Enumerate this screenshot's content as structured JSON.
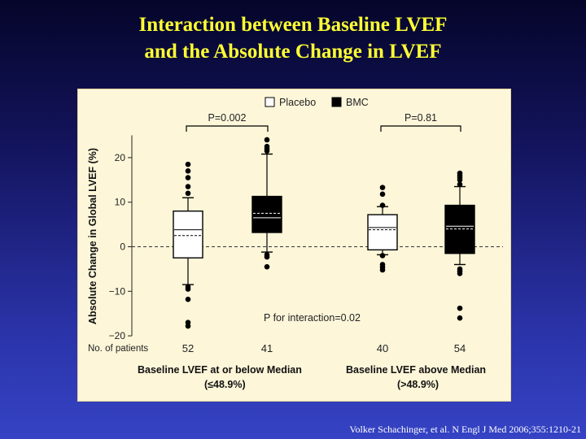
{
  "slide": {
    "title_line1": "Interaction between Baseline LVEF",
    "title_line2": "and the Absolute Change in LVEF",
    "citation": "Volker Schachinger, et al. N Engl J Med 2006;355:1210-21",
    "colors": {
      "title": "#ffff33",
      "panel": "#fdf6d9"
    }
  },
  "chart_data": {
    "type": "boxplot",
    "ylabel": "Absolute Change in Global LVEF (%)",
    "ylim": [
      -20,
      25
    ],
    "yticks": [
      20,
      10,
      0,
      -10,
      -20
    ],
    "ytick_labels": [
      "20",
      "10",
      "0",
      "−10",
      "−20"
    ],
    "reference_line": 0,
    "legend": [
      {
        "name": "Placebo",
        "fill": "#ffffff"
      },
      {
        "name": "BMC",
        "fill": "#000000"
      }
    ],
    "patients_label": "No. of patients",
    "interaction_label": "P for interaction=0.02",
    "groups": [
      {
        "label_line1": "Baseline LVEF at or below Median",
        "label_line2": "(≤48.9%)",
        "pvalue": "P=0.002",
        "boxes": [
          {
            "series": "Placebo",
            "n": "52",
            "q1": -2.5,
            "median": 3.8,
            "mean": 2.5,
            "q3": 8.0,
            "whisker_low": -8.5,
            "whisker_high": 11.0,
            "outliers": [
              18.5,
              17,
              15.5,
              13.5,
              12,
              -9,
              -9.5,
              -11.8,
              -17,
              -17.8
            ]
          },
          {
            "series": "BMC",
            "n": "41",
            "q1": 3.2,
            "median": 6.5,
            "mean": 7.5,
            "q3": 11.3,
            "whisker_low": -1.2,
            "whisker_high": 20.8,
            "outliers": [
              24,
              22.5,
              22,
              21.5,
              -1.8,
              -2.3,
              -4.5
            ]
          }
        ]
      },
      {
        "label_line1": "Baseline LVEF above Median",
        "label_line2": "(>48.9%)",
        "pvalue": "P=0.81",
        "boxes": [
          {
            "series": "Placebo",
            "n": "40",
            "q1": -0.7,
            "median": 4.3,
            "mean": 3.8,
            "q3": 7.2,
            "whisker_low": -1.8,
            "whisker_high": 9.0,
            "outliers": [
              13.3,
              11.8,
              9.3,
              -2,
              -4,
              -4.6,
              -5.2
            ]
          },
          {
            "series": "BMC",
            "n": "54",
            "q1": -1.5,
            "median": 4.6,
            "mean": 4.0,
            "q3": 9.3,
            "whisker_low": -4.0,
            "whisker_high": 13.5,
            "outliers": [
              16.5,
              16,
              15.5,
              15,
              14,
              -5,
              -5.5,
              -6,
              -13.8,
              -16
            ]
          }
        ]
      }
    ]
  }
}
